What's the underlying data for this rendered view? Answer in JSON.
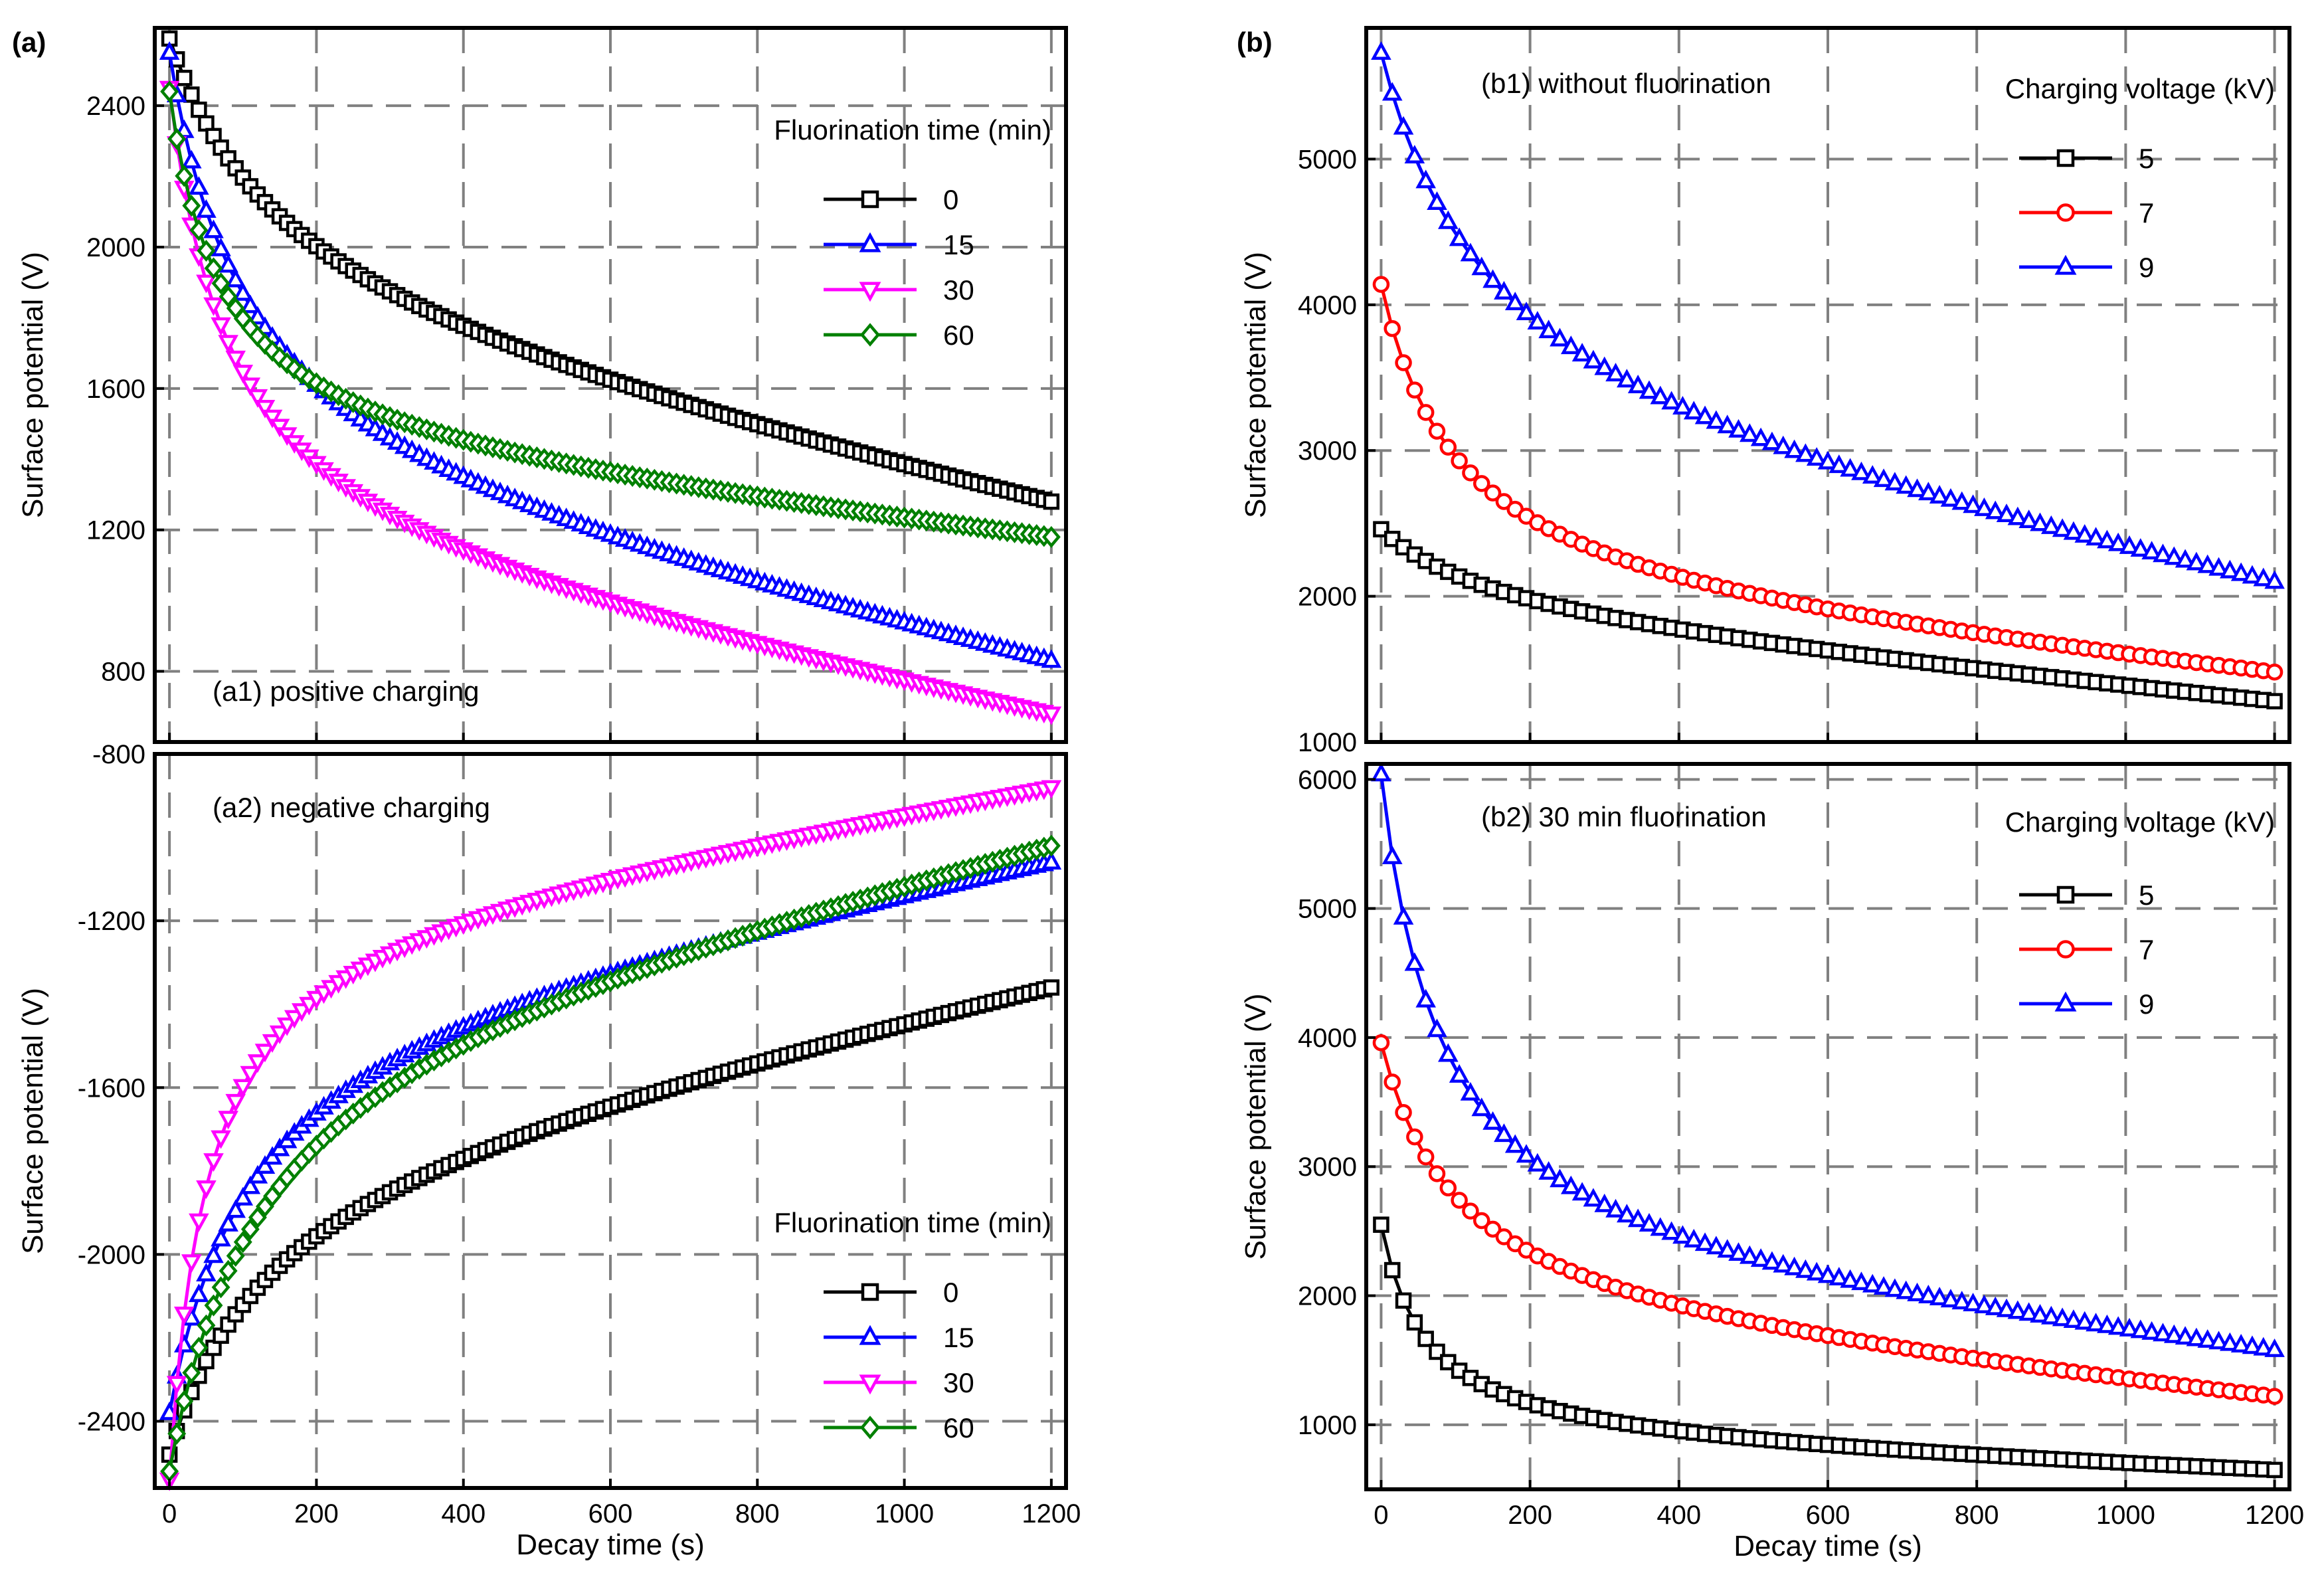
{
  "figure": {
    "panel_a_label": "(a)",
    "panel_b_label": "(b)"
  },
  "chart_data": [
    {
      "id": "a1",
      "type": "line",
      "annotation": "(a1) positive charging",
      "ylabel": "Surface potential (V)",
      "xlabel": "",
      "xlim": [
        -20,
        1220
      ],
      "ylim": [
        600,
        2620
      ],
      "xticks": [
        0,
        200,
        400,
        600,
        800,
        1000,
        1200
      ],
      "yticks": [
        800,
        1200,
        1600,
        2000,
        2400
      ],
      "show_xtick_labels": false,
      "grid": true,
      "legend": {
        "title": "Fluorination time (min)",
        "entries": [
          "0",
          "15",
          "30",
          "60"
        ],
        "placement": "top-right"
      },
      "series": [
        {
          "name": "0",
          "color": "#000000",
          "marker": "square",
          "x0": 0,
          "x_step": 10,
          "x_end": 1200,
          "start": 2590,
          "end": 1280,
          "alpha": 0.62,
          "k": 150
        },
        {
          "name": "15",
          "color": "#0000ff",
          "marker": "triangle-up",
          "x0": 0,
          "x_step": 10,
          "x_end": 1200,
          "start": 2550,
          "end": 830,
          "alpha": 0.7,
          "k": 100
        },
        {
          "name": "30",
          "color": "#ff00ff",
          "marker": "triangle-down",
          "x0": 0,
          "x_step": 10,
          "x_end": 1200,
          "start": 2450,
          "end": 680,
          "alpha": 0.74,
          "k": 80
        },
        {
          "name": "60",
          "color": "#008000",
          "marker": "diamond",
          "x0": 0,
          "x_step": 10,
          "x_end": 1200,
          "start": 2440,
          "end": 1180,
          "alpha": 0.8,
          "k": 70
        }
      ]
    },
    {
      "id": "a2",
      "type": "line",
      "annotation": "(a2) negative charging",
      "ylabel": "Surface potential (V)",
      "xlabel": "Decay time (s)",
      "xlim": [
        -20,
        1220
      ],
      "ylim": [
        -2560,
        -800
      ],
      "xticks": [
        0,
        200,
        400,
        600,
        800,
        1000,
        1200
      ],
      "yticks": [
        -2400,
        -2000,
        -1600,
        -1200,
        -800
      ],
      "show_xtick_labels": true,
      "grid": true,
      "legend": {
        "title": "Fluorination time (min)",
        "entries": [
          "0",
          "15",
          "30",
          "60"
        ],
        "placement": "bottom-right"
      },
      "series": [
        {
          "name": "0",
          "color": "#000000",
          "marker": "square",
          "x0": 0,
          "x_step": 10,
          "x_end": 1200,
          "start": -2480,
          "end": -1360,
          "alpha": 0.62,
          "k": 130
        },
        {
          "name": "15",
          "color": "#0000ff",
          "marker": "triangle-up",
          "x0": 0,
          "x_step": 10,
          "x_end": 1200,
          "start": -2380,
          "end": -1060,
          "alpha": 0.72,
          "k": 110
        },
        {
          "name": "30",
          "color": "#ff00ff",
          "marker": "triangle-down",
          "x0": 0,
          "x_step": 10,
          "x_end": 1200,
          "start": -2540,
          "end": -880,
          "alpha": 0.8,
          "k": 50
        },
        {
          "name": "60",
          "color": "#008000",
          "marker": "diamond",
          "x0": 0,
          "x_step": 10,
          "x_end": 1200,
          "start": -2520,
          "end": -1020,
          "alpha": 0.7,
          "k": 120
        }
      ]
    },
    {
      "id": "b1",
      "type": "line",
      "annotation": "(b1) without fluorination",
      "ylabel": "Surface potential (V)",
      "xlabel": "",
      "xlim": [
        -20,
        1220
      ],
      "ylim": [
        1000,
        5900
      ],
      "xticks": [
        0,
        200,
        400,
        600,
        800,
        1000,
        1200
      ],
      "yticks": [
        1000,
        2000,
        3000,
        4000,
        5000
      ],
      "show_xtick_labels": false,
      "grid": true,
      "legend": {
        "title": "Charging voltage (kV)",
        "entries": [
          "5",
          "7",
          "9"
        ],
        "placement": "top-right"
      },
      "series": [
        {
          "name": "5",
          "color": "#000000",
          "marker": "square",
          "x0": 0,
          "x_step": 15,
          "x_end": 1200,
          "start": 2460,
          "end": 1280,
          "alpha": 0.55,
          "k": 160
        },
        {
          "name": "7",
          "color": "#ff0000",
          "marker": "circle",
          "x0": 0,
          "x_step": 15,
          "x_end": 1200,
          "start": 4140,
          "end": 1480,
          "alpha": 0.8,
          "k": 100
        },
        {
          "name": "9",
          "color": "#0000ff",
          "marker": "triangle-up",
          "x0": 0,
          "x_step": 15,
          "x_end": 1200,
          "start": 5730,
          "end": 2100,
          "alpha": 0.7,
          "k": 140
        }
      ]
    },
    {
      "id": "b2",
      "type": "line",
      "annotation": "(b2) 30 min fluorination",
      "ylabel": "Surface potential (V)",
      "xlabel": "Decay time (s)",
      "xlim": [
        -20,
        1220
      ],
      "ylim": [
        500,
        6120
      ],
      "xticks": [
        0,
        200,
        400,
        600,
        800,
        1000,
        1200
      ],
      "yticks": [
        1000,
        2000,
        3000,
        4000,
        5000,
        6000
      ],
      "show_xtick_labels": true,
      "grid": true,
      "legend": {
        "title": "Charging voltage (kV)",
        "entries": [
          "5",
          "7",
          "9"
        ],
        "placement": "top-right"
      },
      "series": [
        {
          "name": "5",
          "color": "#000000",
          "marker": "square",
          "x0": 0,
          "x_step": 15,
          "x_end": 1200,
          "start": 2550,
          "end": 650,
          "alpha": 0.88,
          "k": 60
        },
        {
          "name": "7",
          "color": "#ff0000",
          "marker": "circle",
          "x0": 0,
          "x_step": 15,
          "x_end": 1200,
          "start": 3960,
          "end": 1220,
          "alpha": 0.78,
          "k": 100
        },
        {
          "name": "9",
          "color": "#0000ff",
          "marker": "triangle-up",
          "x0": 0,
          "x_step": 15,
          "x_end": 1200,
          "start": 6040,
          "end": 1580,
          "alpha": 0.85,
          "k": 80
        }
      ]
    }
  ]
}
